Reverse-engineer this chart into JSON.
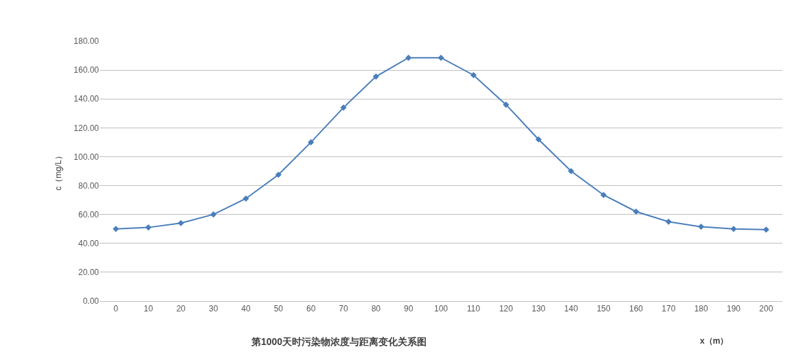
{
  "chart_data": {
    "type": "line",
    "title": "第1000天时污染物浓度与距离变化关系图",
    "xlabel": "x（m）",
    "ylabel": "c（mg/L）",
    "categories": [
      "0",
      "10",
      "20",
      "30",
      "40",
      "50",
      "60",
      "70",
      "80",
      "90",
      "100",
      "110",
      "120",
      "130",
      "140",
      "150",
      "160",
      "170",
      "180",
      "190",
      "200"
    ],
    "series": [
      {
        "color": "#4a7ebb",
        "values": [
          50,
          51,
          54,
          60,
          71,
          87.5,
          110,
          134,
          155.5,
          168.5,
          168.5,
          156.5,
          136,
          112,
          90,
          73.5,
          62,
          55,
          51.5,
          50,
          49.5
        ]
      }
    ],
    "ylim": [
      0,
      180
    ],
    "yticks": [
      {
        "value": 0,
        "label": "0.00"
      },
      {
        "value": 20,
        "label": "20.00"
      },
      {
        "value": 40,
        "label": "40.00"
      },
      {
        "value": 60,
        "label": "60.00"
      },
      {
        "value": 80,
        "label": "80.00"
      },
      {
        "value": 100,
        "label": "100.00"
      },
      {
        "value": 120,
        "label": "120.00"
      },
      {
        "value": 140,
        "label": "140.00"
      },
      {
        "value": 160,
        "label": "160.00"
      },
      {
        "value": 180,
        "label": "180.00"
      }
    ],
    "grid": "y",
    "marker": "diamond",
    "line_style": "solid"
  }
}
